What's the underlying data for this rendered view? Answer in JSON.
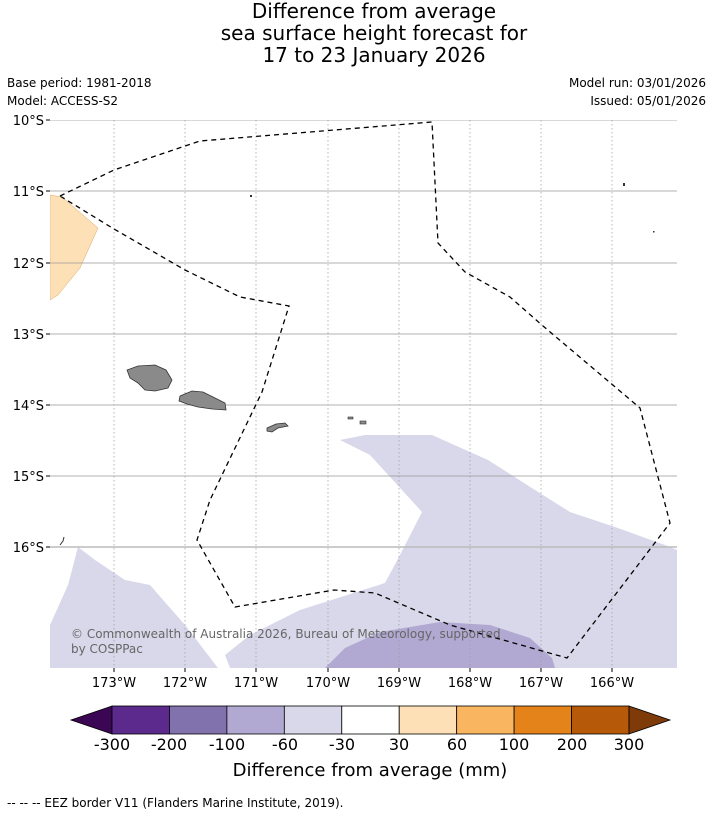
{
  "title": {
    "line1": "Difference from average",
    "line2": "sea surface height forecast for",
    "line3": "17 to 23 January 2026"
  },
  "meta": {
    "base_period": "Base period: 1981-2018",
    "model": "Model: ACCESS-S2",
    "model_run": "Model run: 03/01/2026",
    "issued": "Issued: 05/01/2026"
  },
  "map": {
    "lat_labels": [
      "10°S",
      "11°S",
      "12°S",
      "13°S",
      "14°S",
      "15°S",
      "16°S"
    ],
    "lon_labels": [
      "173°W",
      "172°W",
      "171°W",
      "170°W",
      "169°W",
      "168°W",
      "167°W",
      "166°W"
    ],
    "copyright_line1": "© Commonwealth of Australia 2026, Bureau of Meteorology, supported",
    "copyright_line2": "by COSPPac"
  },
  "colorbar": {
    "label": "Difference from average (mm)",
    "ticks": [
      "-300",
      "-200",
      "-100",
      "-60",
      "-30",
      "30",
      "60",
      "100",
      "200",
      "300"
    ],
    "colors": [
      "#5b2a8c",
      "#8172ae",
      "#b1a9d2",
      "#d8d8ea",
      "#ffffff",
      "#fde0b6",
      "#f9b55f",
      "#e3831a",
      "#b65909"
    ],
    "under_color": "#3b0755",
    "over_color": "#7f3a09"
  },
  "colors": {
    "band_light_purple": "#d8d8ea",
    "band_mid_purple": "#b1a9d2",
    "band_light_orange": "#fde0b6",
    "land": "#8a8a8a"
  },
  "footer": "--  --  -- EEZ border V11 (Flanders Marine Institute, 2019)."
}
